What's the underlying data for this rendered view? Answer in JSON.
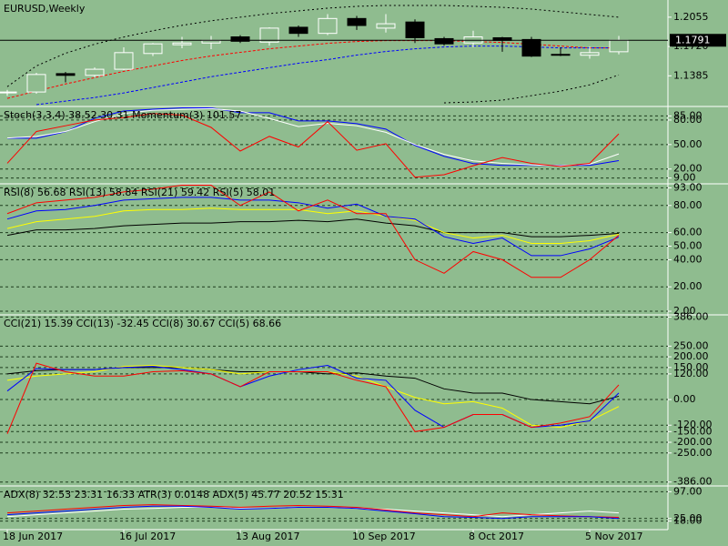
{
  "chart_data": [
    {
      "type": "candlestick",
      "title": "EURUSD,Weekly",
      "open": [
        1.1195,
        1.12,
        1.141,
        1.139,
        1.146,
        1.164,
        1.174,
        1.176,
        1.183,
        1.177,
        1.194,
        1.187,
        1.204,
        1.193,
        1.2,
        1.181,
        1.176,
        1.182,
        1.18,
        1.163,
        1.162,
        1.166
      ],
      "high": [
        1.1225,
        1.142,
        1.143,
        1.148,
        1.171,
        1.176,
        1.183,
        1.184,
        1.185,
        1.194,
        1.196,
        1.209,
        1.207,
        1.209,
        1.203,
        1.183,
        1.19,
        1.183,
        1.183,
        1.171,
        1.172,
        1.184
      ],
      "low": [
        1.1155,
        1.118,
        1.131,
        1.137,
        1.145,
        1.161,
        1.17,
        1.169,
        1.176,
        1.173,
        1.183,
        1.185,
        1.191,
        1.188,
        1.176,
        1.173,
        1.171,
        1.166,
        1.16,
        1.161,
        1.158,
        1.163
      ],
      "close": [
        1.12,
        1.14,
        1.139,
        1.146,
        1.165,
        1.175,
        1.176,
        1.179,
        1.178,
        1.193,
        1.187,
        1.204,
        1.196,
        1.198,
        1.182,
        1.175,
        1.183,
        1.179,
        1.161,
        1.1625,
        1.165,
        1.1791
      ],
      "series": [
        {
          "color": "#000000",
          "style": "dotted",
          "values": [
            1.1261,
            1.1498,
            1.1643,
            1.1746,
            1.1828,
            1.19,
            1.1962,
            1.2014,
            1.2055,
            1.2096,
            1.2127,
            1.2158,
            1.2179,
            1.2189,
            1.2189,
            1.2189,
            1.2179,
            1.2168,
            1.2148,
            1.2117,
            1.2086,
            1.2055
          ]
        },
        {
          "color": "#000000",
          "style": "dotted",
          "values": [
            null,
            null,
            null,
            null,
            null,
            null,
            null,
            null,
            null,
            null,
            null,
            null,
            null,
            null,
            null,
            1.1076,
            1.1086,
            1.1107,
            1.1158,
            1.121,
            1.1282,
            1.1395
          ]
        },
        {
          "color": "#ff0000",
          "style": "dashed",
          "values": [
            1.1127,
            1.121,
            1.1292,
            1.1364,
            1.1436,
            1.1498,
            1.156,
            1.1612,
            1.1653,
            1.1694,
            1.1725,
            1.1756,
            1.1777,
            1.1787,
            1.1787,
            1.1787,
            1.1777,
            1.1766,
            1.1746,
            1.1725,
            1.1704,
            1.1704
          ]
        },
        {
          "color": "#0000ff",
          "style": "dashed",
          "values": [
            null,
            1.1055,
            1.1096,
            1.1137,
            1.1189,
            1.1251,
            1.1313,
            1.1375,
            1.1426,
            1.1478,
            1.1529,
            1.157,
            1.1622,
            1.1663,
            1.1694,
            1.1715,
            1.1725,
            1.1725,
            1.1715,
            1.1704,
            1.1704,
            1.1704
          ]
        }
      ],
      "last_price": 1.1791,
      "ylim": [
        1.1045,
        1.2241
      ],
      "yticks": [
        1.2055,
        {
          "value": 1.172,
          "label": "1.1720"
        },
        1.1385
      ],
      "grid": false
    },
    {
      "type": "line",
      "title": "Stoch(3,3,4) 38.52 30.31 Momentum(3) 101.57",
      "series": [
        {
          "color": "#0000ff",
          "values": [
            57.8,
            57.8,
            65.6,
            82.2,
            91.1,
            93.3,
            95,
            95,
            88.9,
            88.9,
            78.9,
            78.9,
            75.6,
            68.9,
            48.9,
            35.6,
            26.7,
            24.4,
            24.4,
            24.4,
            24.4,
            30.31
          ]
        },
        {
          "color": "#ffffff",
          "values": [
            58,
            60,
            66,
            78,
            88,
            92,
            93,
            94,
            91,
            82,
            72,
            76,
            73,
            65,
            50,
            38,
            30,
            27,
            25,
            24,
            26,
            38.52
          ]
        },
        {
          "color": "#ff0000",
          "values": [
            27,
            66,
            73,
            80,
            83,
            88,
            86,
            71,
            42,
            60,
            47,
            78,
            43,
            51,
            10,
            13,
            24,
            34,
            27,
            23,
            27,
            63
          ]
        }
      ],
      "ylim": [
        3,
        95.5
      ],
      "yticks": [
        {
          "value": 85,
          "label": "85.00"
        },
        {
          "value": 80,
          "label": "80.00"
        },
        {
          "value": 50,
          "label": "50.00"
        },
        {
          "value": 20,
          "label": "20.00"
        },
        {
          "value": 9,
          "label": "9.00"
        }
      ],
      "grid": true
    },
    {
      "type": "line",
      "title": "RSI(8) 56.68 RSI(13) 58.84 RSI(21) 59.42 RSI(5) 58.01",
      "series": [
        {
          "color": "#000000",
          "values": [
            58,
            62,
            62,
            63,
            65,
            66,
            67,
            67,
            68,
            68,
            69,
            68,
            70,
            67,
            65,
            60,
            60,
            60,
            57,
            57,
            58,
            59.42
          ]
        },
        {
          "color": "#ffff00",
          "values": [
            63,
            68,
            70,
            72,
            76,
            77,
            77,
            78,
            77,
            77,
            77,
            74,
            76,
            72,
            69,
            60,
            56,
            58,
            52,
            52,
            54,
            58.84
          ]
        },
        {
          "color": "#0000ff",
          "values": [
            70,
            76,
            77,
            80,
            84,
            85,
            86,
            86,
            84,
            84,
            82,
            78,
            81,
            72,
            70,
            57,
            52,
            56,
            43,
            43,
            48,
            56.68
          ]
        },
        {
          "color": "#ff0000",
          "values": [
            74,
            82,
            84,
            86,
            90,
            92,
            95,
            95,
            80,
            90,
            76,
            84,
            74,
            74,
            40,
            30,
            46,
            40,
            27,
            27,
            40,
            58.01
          ]
        }
      ],
      "ylim": [
        0,
        95.3
      ],
      "yticks": [
        {
          "value": 93,
          "label": "93.00"
        },
        {
          "value": 80,
          "label": "80.00"
        },
        {
          "value": 60,
          "label": "60.00"
        },
        {
          "value": 50,
          "label": "50.00"
        },
        {
          "value": 40,
          "label": "40.00"
        },
        {
          "value": 20,
          "label": "20.00"
        },
        {
          "value": 2,
          "label": "2.00"
        }
      ],
      "grid": true
    },
    {
      "type": "line",
      "title": "CCI(21) 15.39 CCI(13) -32.45 CCI(8) 30.67 CCI(5) 68.66",
      "series": [
        {
          "color": "#000000",
          "values": [
            120,
            135,
            140,
            140,
            150,
            150,
            150,
            140,
            130,
            130,
            130,
            120,
            125,
            110,
            100,
            50,
            30,
            30,
            0,
            -10,
            -20,
            15.39
          ]
        },
        {
          "color": "#ffff00",
          "values": [
            90,
            110,
            120,
            130,
            155,
            160,
            150,
            140,
            120,
            130,
            130,
            130,
            110,
            60,
            10,
            -20,
            -10,
            -40,
            -120,
            -130,
            -100,
            -32.45
          ]
        },
        {
          "color": "#0000ff",
          "values": [
            40,
            145,
            140,
            140,
            150,
            155,
            140,
            120,
            60,
            110,
            140,
            160,
            100,
            90,
            -50,
            -130,
            -70,
            -70,
            -130,
            -120,
            -100,
            30.67
          ]
        },
        {
          "color": "#ff0000",
          "values": [
            -160,
            170,
            130,
            110,
            110,
            130,
            135,
            120,
            60,
            130,
            130,
            130,
            90,
            60,
            -150,
            -130,
            -70,
            -70,
            -130,
            -110,
            -80,
            68.66
          ]
        }
      ],
      "ylim": [
        -400,
        392
      ],
      "yticks": [
        {
          "value": 386,
          "label": "386.00"
        },
        {
          "value": 250,
          "label": "250.00"
        },
        {
          "value": 200,
          "label": "200.00"
        },
        {
          "value": 150,
          "label": "150.00"
        },
        {
          "value": 120,
          "label": "120.00"
        },
        {
          "value": 0,
          "label": "0.00"
        },
        {
          "value": -120,
          "label": "-120.00"
        },
        {
          "value": -150,
          "label": "-150.00"
        },
        {
          "value": -200,
          "label": "-200.00"
        },
        {
          "value": -250,
          "label": "-250.00"
        },
        {
          "value": -386,
          "label": "-386.00"
        }
      ],
      "grid": true
    },
    {
      "type": "line",
      "title": "ADX(8) 32.53 23.31 16.33 ATR(3) 0.0148 ADX(5) 45.77 20.52 15.31",
      "categories": [
        "18 Jun 2017",
        null,
        null,
        null,
        "16 Jul 2017",
        null,
        null,
        null,
        "13 Aug 2017",
        null,
        null,
        null,
        "10 Sep 2017",
        null,
        null,
        null,
        "8 Oct 2017",
        null,
        null,
        null,
        "5 Nov 2017",
        null
      ],
      "series": [
        {
          "color": "#ffffff",
          "values": [
            30,
            35,
            40,
            45,
            50,
            52,
            55,
            55,
            52,
            52,
            55,
            55,
            52,
            50,
            45,
            40,
            35,
            30,
            35,
            40,
            45,
            40
          ]
        },
        {
          "color": "#ff0000",
          "values": [
            40,
            45,
            50,
            55,
            60,
            62,
            60,
            58,
            55,
            58,
            60,
            58,
            55,
            48,
            40,
            35,
            30,
            40,
            35,
            32,
            30,
            28
          ]
        },
        {
          "color": "#0000ff",
          "values": [
            35,
            40,
            45,
            50,
            55,
            58,
            58,
            55,
            50,
            52,
            55,
            55,
            52,
            45,
            38,
            30,
            28,
            25,
            30,
            30,
            30,
            25
          ]
        }
      ],
      "ylim": [
        0,
        110
      ],
      "yticks": [
        {
          "value": 97,
          "label": "97.00"
        },
        {
          "value": 25,
          "label": "25.00"
        },
        {
          "value": 18,
          "label": "18.00"
        }
      ],
      "grid": true
    }
  ]
}
